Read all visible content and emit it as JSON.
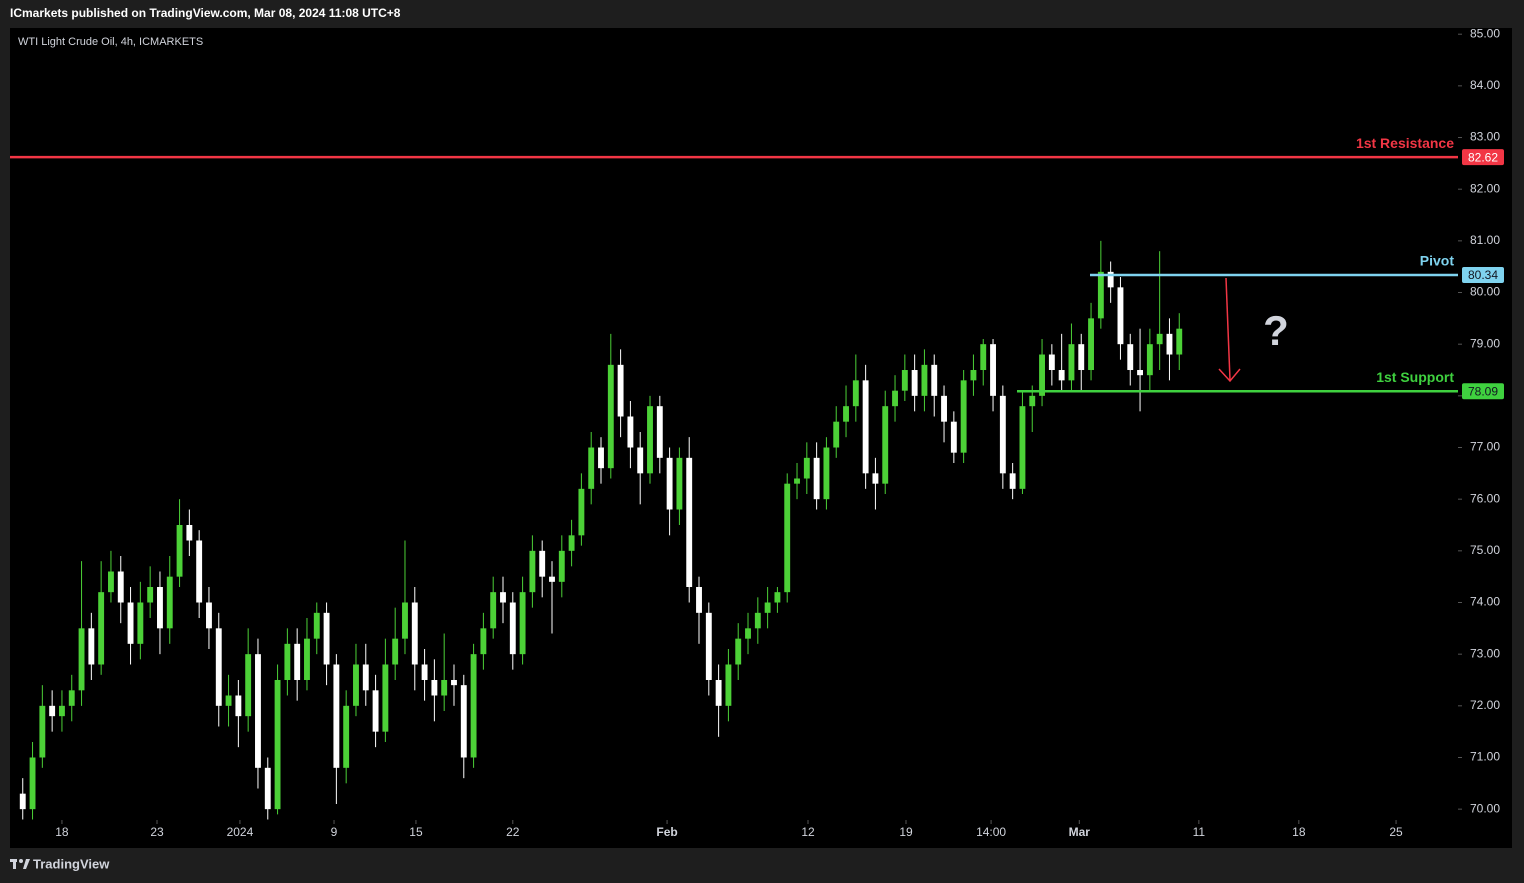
{
  "header": {
    "publisher": "ICmarkets published on TradingView.com, Mar 08, 2024 11:08 UTC+8",
    "brand": "TradingView"
  },
  "chart_data": {
    "type": "candlestick",
    "title": "WTI Light Crude Oil, 4h, ICMARKETS",
    "up_color": "#4cd137",
    "down_color": "#ffffff",
    "x": [
      -2,
      -1.5,
      -1,
      -0.5,
      0,
      0.5,
      1,
      1.5,
      2,
      2.5,
      3,
      3.5,
      4,
      4.5,
      5,
      5.5,
      6,
      6.5,
      7,
      7.5,
      8,
      8.5,
      9,
      9.5,
      10,
      10.5,
      11,
      11.5,
      12,
      12.5,
      13,
      13.5,
      14,
      14.5,
      15,
      15.5,
      16,
      16.5,
      17,
      17.5,
      18,
      18.5,
      19,
      19.5,
      20,
      20.5,
      21,
      21.5,
      22,
      22.5,
      23,
      23.5,
      24,
      24.5,
      25,
      25.5,
      26,
      26.5,
      27,
      27.5,
      28,
      28.5,
      29,
      29.5,
      30,
      30.5,
      31,
      31.5,
      32,
      32.5,
      33,
      33.5,
      34,
      34.5,
      35,
      35.5,
      36,
      36.5,
      37,
      37.5,
      38,
      38.5,
      39,
      39.5,
      40,
      40.5,
      41,
      41.5,
      42,
      42.5,
      43,
      43.5,
      44,
      44.5,
      45,
      45.5,
      46,
      46.5,
      47,
      47.5,
      48,
      48.5,
      49,
      49.5,
      50,
      50.5,
      51,
      51.5,
      52,
      52.5,
      53,
      53.5,
      54,
      54.5,
      55,
      55.5,
      56,
      56.5,
      57
    ],
    "open": [
      70.3,
      70.0,
      71.0,
      72.0,
      71.8,
      72.0,
      72.3,
      73.5,
      72.8,
      74.2,
      74.6,
      74.0,
      73.2,
      74.0,
      74.3,
      73.5,
      74.5,
      75.5,
      75.2,
      74.0,
      73.5,
      72.0,
      72.2,
      71.8,
      73.0,
      70.8,
      70.0,
      72.5,
      73.2,
      72.5,
      73.3,
      73.8,
      72.8,
      70.8,
      72.0,
      72.8,
      72.3,
      71.5,
      72.8,
      73.3,
      74.0,
      72.8,
      72.5,
      72.2,
      72.5,
      72.4,
      71.0,
      73.0,
      73.5,
      74.2,
      74.0,
      73.0,
      74.2,
      75.0,
      74.5,
      74.4,
      75.0,
      75.3,
      76.2,
      77.0,
      76.6,
      78.6,
      77.6,
      77.0,
      76.5,
      77.8,
      76.8,
      75.8,
      76.8,
      74.3,
      73.8,
      72.5,
      72.0,
      72.8,
      73.3,
      73.5,
      73.8,
      74.0,
      74.2,
      76.3,
      76.4,
      76.8,
      76.0,
      77.0,
      77.5,
      77.8,
      78.3,
      76.5,
      76.3,
      77.8,
      78.1,
      78.5,
      78.0,
      78.6,
      78.0,
      77.5,
      76.9,
      78.3,
      78.5,
      79.0,
      78.0,
      76.5,
      76.2,
      77.8,
      78.0,
      78.8,
      78.5,
      78.3,
      79.0,
      78.5,
      79.5,
      80.4,
      80.1,
      79.0,
      78.5,
      78.4,
      79.0,
      79.2,
      78.8
    ],
    "high": [
      70.6,
      71.3,
      72.4,
      72.3,
      72.3,
      72.6,
      74.8,
      73.8,
      74.8,
      75.0,
      74.9,
      74.3,
      74.4,
      74.7,
      74.6,
      74.9,
      76.0,
      75.8,
      75.4,
      74.3,
      73.8,
      72.6,
      72.5,
      73.5,
      73.3,
      71.0,
      72.8,
      73.5,
      73.5,
      73.7,
      74.0,
      74.0,
      73.0,
      72.3,
      73.2,
      73.2,
      72.6,
      73.3,
      73.9,
      75.2,
      74.3,
      73.1,
      72.9,
      73.4,
      72.8,
      72.6,
      73.2,
      73.8,
      74.5,
      74.5,
      74.2,
      74.5,
      75.3,
      75.2,
      74.8,
      75.3,
      75.6,
      76.5,
      77.3,
      77.2,
      79.2,
      78.9,
      77.9,
      77.3,
      78.0,
      78.0,
      77.0,
      77.0,
      77.2,
      74.5,
      74.0,
      72.8,
      73.1,
      73.6,
      73.8,
      74.1,
      74.3,
      74.3,
      76.5,
      76.7,
      77.1,
      77.1,
      77.2,
      77.8,
      78.2,
      78.8,
      78.6,
      76.8,
      78.1,
      78.4,
      78.8,
      78.8,
      78.9,
      78.8,
      78.2,
      77.7,
      78.5,
      78.8,
      79.1,
      79.1,
      78.2,
      76.7,
      78.1,
      78.2,
      79.1,
      79.0,
      79.2,
      79.4,
      79.2,
      79.8,
      81.0,
      80.6,
      80.3,
      79.2,
      79.3,
      79.3,
      80.8,
      79.5,
      79.6
    ],
    "low": [
      69.8,
      69.8,
      70.8,
      71.5,
      71.5,
      71.7,
      72.0,
      72.5,
      72.6,
      74.0,
      73.6,
      72.8,
      72.9,
      73.7,
      73.0,
      73.2,
      74.3,
      74.9,
      73.7,
      73.1,
      71.6,
      71.6,
      71.2,
      71.5,
      70.4,
      69.8,
      69.9,
      72.2,
      72.1,
      72.3,
      73.0,
      72.4,
      70.1,
      70.5,
      71.8,
      72.0,
      71.2,
      71.3,
      72.5,
      73.0,
      72.3,
      72.1,
      71.7,
      71.9,
      72.0,
      70.6,
      70.8,
      72.7,
      73.3,
      73.6,
      72.7,
      72.8,
      73.9,
      74.1,
      73.4,
      74.1,
      74.7,
      75.1,
      75.9,
      76.3,
      76.4,
      77.2,
      76.6,
      75.9,
      76.3,
      76.5,
      75.3,
      75.5,
      74.0,
      73.2,
      72.2,
      71.4,
      71.7,
      72.5,
      73.0,
      73.2,
      73.5,
      73.8,
      74.0,
      76.0,
      76.1,
      75.8,
      75.8,
      76.8,
      77.2,
      77.5,
      76.2,
      75.8,
      76.1,
      77.5,
      77.9,
      77.7,
      77.7,
      77.6,
      77.1,
      76.7,
      76.7,
      78.0,
      78.2,
      77.7,
      76.2,
      76.0,
      76.1,
      77.3,
      77.8,
      78.2,
      78.1,
      78.1,
      78.1,
      78.3,
      79.3,
      79.8,
      78.7,
      78.2,
      77.7,
      78.1,
      78.5,
      78.3,
      78.5
    ],
    "close": [
      70.0,
      71.0,
      72.0,
      71.8,
      72.0,
      72.3,
      73.5,
      72.8,
      74.2,
      74.6,
      74.0,
      73.2,
      74.0,
      74.3,
      73.5,
      74.5,
      75.5,
      75.2,
      74.0,
      73.5,
      72.0,
      72.2,
      71.8,
      73.0,
      70.8,
      70.0,
      72.5,
      73.2,
      72.5,
      73.3,
      73.8,
      72.8,
      70.8,
      72.0,
      72.8,
      72.3,
      71.5,
      72.8,
      73.3,
      74.0,
      72.8,
      72.5,
      72.2,
      72.5,
      72.4,
      71.0,
      73.0,
      73.5,
      74.2,
      74.0,
      73.0,
      74.2,
      75.0,
      74.5,
      74.4,
      75.0,
      75.3,
      76.2,
      77.0,
      76.6,
      78.6,
      77.6,
      77.0,
      76.5,
      77.8,
      76.8,
      75.8,
      76.8,
      74.3,
      73.8,
      72.5,
      72.0,
      72.8,
      73.3,
      73.5,
      73.8,
      74.0,
      74.2,
      76.3,
      76.4,
      76.8,
      76.0,
      77.0,
      77.5,
      77.8,
      78.3,
      76.5,
      76.3,
      77.8,
      78.1,
      78.5,
      78.0,
      78.6,
      78.0,
      77.5,
      76.9,
      78.3,
      78.5,
      79.0,
      78.0,
      76.5,
      76.2,
      77.8,
      78.0,
      78.8,
      78.5,
      78.3,
      79.0,
      78.5,
      79.5,
      80.4,
      80.1,
      79.0,
      78.5,
      78.4,
      79.0,
      79.2,
      78.8,
      79.3
    ],
    "xlim": [
      -2.65,
      71.22
    ],
    "xticks": [
      {
        "value": 0,
        "label": "18"
      },
      {
        "value": 4.85,
        "label": "23"
      },
      {
        "value": 9.08,
        "label": "2024"
      },
      {
        "value": 13.88,
        "label": "9"
      },
      {
        "value": 18.06,
        "label": "15"
      },
      {
        "value": 23.0,
        "label": "22"
      },
      {
        "value": 30.87,
        "label": "Feb"
      },
      {
        "value": 38.06,
        "label": "12"
      },
      {
        "value": 43.06,
        "label": "19"
      },
      {
        "value": 47.4,
        "label": "14:00"
      },
      {
        "value": 51.9,
        "label": "Mar"
      },
      {
        "value": 58.0,
        "label": "11"
      },
      {
        "value": 63.1,
        "label": "18"
      },
      {
        "value": 68.06,
        "label": "25"
      }
    ],
    "ylim": [
      69.79,
      85.12
    ],
    "yticks": [
      {
        "value": 70,
        "label": "70.00"
      },
      {
        "value": 71,
        "label": "71.00"
      },
      {
        "value": 72,
        "label": "72.00"
      },
      {
        "value": 73,
        "label": "73.00"
      },
      {
        "value": 74,
        "label": "74.00"
      },
      {
        "value": 75,
        "label": "75.00"
      },
      {
        "value": 76,
        "label": "76.00"
      },
      {
        "value": 77,
        "label": "77.00"
      },
      {
        "value": 78,
        "label": "78.00"
      },
      {
        "value": 79,
        "label": "79.00"
      },
      {
        "value": 80,
        "label": "80.00"
      },
      {
        "value": 81,
        "label": "81.00"
      },
      {
        "value": 82,
        "label": "82.00"
      },
      {
        "value": 83,
        "label": "83.00"
      },
      {
        "value": 84,
        "label": "84.00"
      },
      {
        "value": 85,
        "label": "85.00"
      }
    ],
    "levels": [
      {
        "label": "1st Resistance",
        "value": 82.62,
        "color": "#f23645"
      },
      {
        "label": "Pivot",
        "value": 80.34,
        "color": "#7fd3ef"
      },
      {
        "label": "1st Support",
        "value": 78.09,
        "color": "#3fd13f"
      }
    ],
    "annotations": [
      {
        "text": "?"
      }
    ]
  }
}
